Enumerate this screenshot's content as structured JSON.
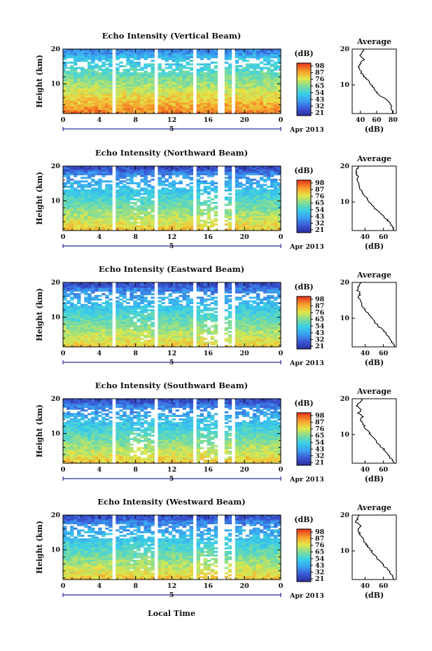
{
  "figure": {
    "xlabel": "Local Time"
  },
  "chart_data": [
    {
      "type": "heatmap",
      "title": "Echo Intensity (Vertical Beam)",
      "ylabel": "Height (km)",
      "x_ticks": [
        "0",
        "4",
        "8",
        "12",
        "16",
        "20",
        "0"
      ],
      "y_ticks": [
        "20",
        "10"
      ],
      "date_mark": "5",
      "date_label": "Apr 2013",
      "colorbar": {
        "unit": "(dB)",
        "ticks": [
          "98",
          "87",
          "76",
          "65",
          "54",
          "43",
          "32",
          "21"
        ]
      },
      "profile": {
        "title": "Average",
        "xlabel": "(dB)",
        "x_ticks": [
          "40",
          "60",
          "80"
        ],
        "y_ticks": [
          "20",
          "10"
        ],
        "xlim": [
          30,
          84
        ],
        "ylim": [
          2,
          20
        ],
        "points": [
          [
            2,
            80
          ],
          [
            3,
            79
          ],
          [
            4,
            78
          ],
          [
            5,
            76
          ],
          [
            6,
            72
          ],
          [
            7,
            64
          ],
          [
            8,
            60
          ],
          [
            9,
            57
          ],
          [
            10,
            53
          ],
          [
            11,
            50
          ],
          [
            12,
            46
          ],
          [
            13,
            42
          ],
          [
            14,
            40
          ],
          [
            15,
            38
          ],
          [
            16,
            40
          ],
          [
            17,
            44
          ],
          [
            18,
            40
          ],
          [
            19,
            42
          ],
          [
            20,
            44
          ]
        ]
      }
    },
    {
      "type": "heatmap",
      "title": "Echo Intensity (Northward Beam)",
      "ylabel": "Height (km)",
      "x_ticks": [
        "0",
        "4",
        "8",
        "12",
        "16",
        "20",
        "0"
      ],
      "y_ticks": [
        "20",
        "10"
      ],
      "date_mark": "5",
      "date_label": "Apr 2013",
      "colorbar": {
        "unit": "(dB)",
        "ticks": [
          "98",
          "87",
          "76",
          "65",
          "54",
          "43",
          "32",
          "21"
        ]
      },
      "profile": {
        "title": "Average",
        "xlabel": "(dB)",
        "x_ticks": [
          "40",
          "60"
        ],
        "y_ticks": [
          "20",
          "10"
        ],
        "xlim": [
          26,
          74
        ],
        "ylim": [
          2,
          20
        ],
        "points": [
          [
            2,
            72
          ],
          [
            3,
            70
          ],
          [
            4,
            67
          ],
          [
            5,
            64
          ],
          [
            6,
            60
          ],
          [
            7,
            56
          ],
          [
            8,
            52
          ],
          [
            9,
            48
          ],
          [
            10,
            45
          ],
          [
            11,
            42
          ],
          [
            12,
            39
          ],
          [
            13,
            36
          ],
          [
            14,
            34
          ],
          [
            15,
            33
          ],
          [
            16,
            31
          ],
          [
            17,
            33
          ],
          [
            18,
            30
          ],
          [
            19,
            31
          ],
          [
            20,
            33
          ]
        ]
      }
    },
    {
      "type": "heatmap",
      "title": "Echo Intensity (Eastward Beam)",
      "ylabel": "Height (km)",
      "x_ticks": [
        "0",
        "4",
        "8",
        "12",
        "16",
        "20",
        "0"
      ],
      "y_ticks": [
        "20",
        "10"
      ],
      "date_mark": "5",
      "date_label": "Apr 2013",
      "colorbar": {
        "unit": "(dB)",
        "ticks": [
          "98",
          "87",
          "76",
          "65",
          "54",
          "43",
          "32",
          "21"
        ]
      },
      "profile": {
        "title": "Average",
        "xlabel": "(dB)",
        "x_ticks": [
          "40",
          "60"
        ],
        "y_ticks": [
          "20",
          "10"
        ],
        "xlim": [
          26,
          74
        ],
        "ylim": [
          2,
          20
        ],
        "points": [
          [
            2,
            72
          ],
          [
            3,
            70
          ],
          [
            4,
            68
          ],
          [
            5,
            65
          ],
          [
            6,
            62
          ],
          [
            7,
            58
          ],
          [
            8,
            54
          ],
          [
            9,
            50
          ],
          [
            10,
            47
          ],
          [
            11,
            44
          ],
          [
            12,
            41
          ],
          [
            13,
            38
          ],
          [
            14,
            36
          ],
          [
            15,
            34
          ],
          [
            16,
            33
          ],
          [
            17,
            35
          ],
          [
            18,
            31
          ],
          [
            19,
            33
          ],
          [
            20,
            36
          ]
        ]
      }
    },
    {
      "type": "heatmap",
      "title": "Echo Intensity (Southward Beam)",
      "ylabel": "Height (km)",
      "x_ticks": [
        "0",
        "4",
        "8",
        "12",
        "16",
        "20",
        "0"
      ],
      "y_ticks": [
        "20",
        "10"
      ],
      "date_mark": "5",
      "date_label": "Apr 2013",
      "colorbar": {
        "unit": "(dB)",
        "ticks": [
          "98",
          "87",
          "76",
          "65",
          "54",
          "43",
          "32",
          "21"
        ]
      },
      "profile": {
        "title": "Average",
        "xlabel": "(dB)",
        "x_ticks": [
          "40",
          "60"
        ],
        "y_ticks": [
          "20",
          "10"
        ],
        "xlim": [
          26,
          74
        ],
        "ylim": [
          2,
          20
        ],
        "points": [
          [
            2,
            72
          ],
          [
            3,
            69
          ],
          [
            4,
            66
          ],
          [
            5,
            63
          ],
          [
            6,
            60
          ],
          [
            7,
            56
          ],
          [
            8,
            52
          ],
          [
            9,
            49
          ],
          [
            10,
            46
          ],
          [
            11,
            43
          ],
          [
            12,
            40
          ],
          [
            13,
            38
          ],
          [
            14,
            35
          ],
          [
            15,
            37
          ],
          [
            16,
            33
          ],
          [
            17,
            36
          ],
          [
            18,
            31
          ],
          [
            19,
            34
          ],
          [
            20,
            37
          ]
        ]
      }
    },
    {
      "type": "heatmap",
      "title": "Echo Intensity (Westward Beam)",
      "ylabel": "Height (km)",
      "x_ticks": [
        "0",
        "4",
        "8",
        "12",
        "16",
        "20",
        "0"
      ],
      "y_ticks": [
        "20",
        "10"
      ],
      "date_mark": "5",
      "date_label": "Apr 2013",
      "colorbar": {
        "unit": "(dB)",
        "ticks": [
          "98",
          "87",
          "76",
          "65",
          "54",
          "43",
          "32",
          "21"
        ]
      },
      "profile": {
        "title": "Average",
        "xlabel": "(dB)",
        "x_ticks": [
          "40",
          "60"
        ],
        "y_ticks": [
          "20",
          "10"
        ],
        "xlim": [
          26,
          74
        ],
        "ylim": [
          2,
          20
        ],
        "points": [
          [
            2,
            72
          ],
          [
            3,
            70
          ],
          [
            4,
            67
          ],
          [
            5,
            64
          ],
          [
            6,
            60
          ],
          [
            7,
            57
          ],
          [
            8,
            53
          ],
          [
            9,
            50
          ],
          [
            10,
            47
          ],
          [
            11,
            44
          ],
          [
            12,
            41
          ],
          [
            13,
            38
          ],
          [
            14,
            36
          ],
          [
            15,
            34
          ],
          [
            16,
            32
          ],
          [
            17,
            35
          ],
          [
            18,
            30
          ],
          [
            19,
            32
          ],
          [
            20,
            34
          ]
        ]
      }
    }
  ]
}
